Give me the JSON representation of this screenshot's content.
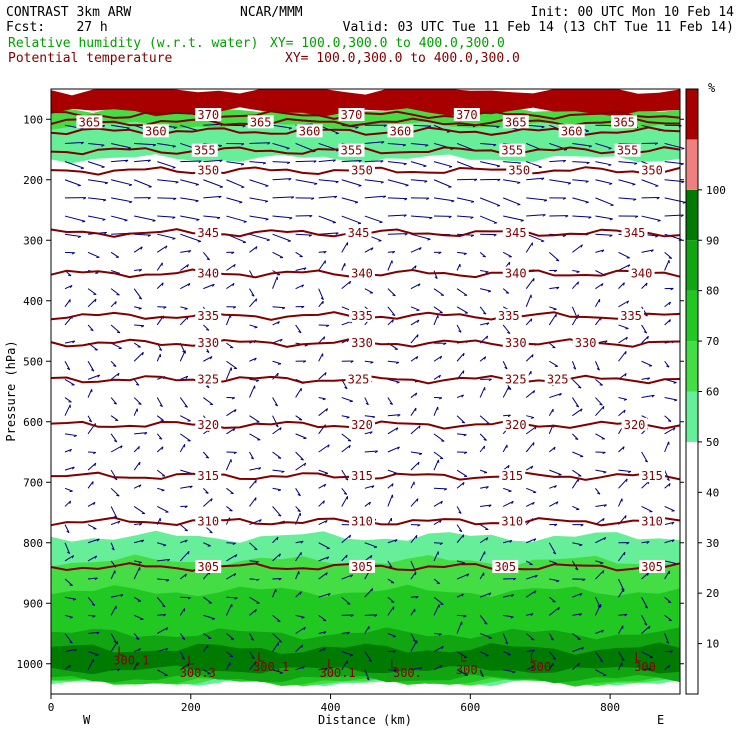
{
  "header": {
    "left1": "CONTRAST  3km ARW",
    "center1": "NCAR/MMM",
    "right1": "Init: 00 UTC Mon 10 Feb 14",
    "left2": "Fcst:    27 h",
    "right2": "Valid: 03 UTC Tue 11 Feb 14 (13 ChT Tue 11 Feb 14)",
    "rh_label": "Relative humidity (w.r.t. water)",
    "rh_xy": "XY= 100.0,300.0 to 400.0,300.0",
    "theta_label": "Potential temperature",
    "theta_xy": "XY= 100.0,300.0 to 400.0,300.0"
  },
  "colors": {
    "rh_label": "#00a000",
    "theta_label": "#800000",
    "theta_line": "#800000",
    "wind": "#00007f",
    "rh_bands": [
      "#66ee99",
      "#44dd44",
      "#22c822",
      "#11a511",
      "#007a00",
      "#f08080",
      "#a80000"
    ]
  },
  "chart_data": {
    "type": "contour",
    "xlabel": "Distance (km)",
    "ylabel": "Pressure (hPa)",
    "xlim": [
      0,
      900
    ],
    "ylim": [
      1050,
      50
    ],
    "x_ticks": [
      0,
      200,
      400,
      600,
      800
    ],
    "y_ticks": [
      100,
      200,
      300,
      400,
      500,
      600,
      700,
      800,
      900,
      1000
    ],
    "x_end_labels": {
      "left": "W",
      "right": "E"
    },
    "colorbar": {
      "unit": "%",
      "ticks": [
        10,
        20,
        30,
        40,
        50,
        60,
        70,
        80,
        90,
        100
      ],
      "levels": [
        50,
        60,
        70,
        80,
        90,
        100,
        110,
        120
      ],
      "colors": [
        "#66ee99",
        "#44dd44",
        "#22c822",
        "#11a511",
        "#007a00",
        "#f08080",
        "#a80000"
      ]
    },
    "theta_contours": [
      {
        "value": 305,
        "pressure": 840
      },
      {
        "value": 310,
        "pressure": 765
      },
      {
        "value": 315,
        "pressure": 690
      },
      {
        "value": 320,
        "pressure": 605
      },
      {
        "value": 325,
        "pressure": 530
      },
      {
        "value": 330,
        "pressure": 470
      },
      {
        "value": 335,
        "pressure": 425
      },
      {
        "value": 340,
        "pressure": 355
      },
      {
        "value": 345,
        "pressure": 288
      },
      {
        "value": 350,
        "pressure": 185
      },
      {
        "value": 355,
        "pressure": 152
      },
      {
        "value": 360,
        "pressure": 120
      },
      {
        "value": 365,
        "pressure": 105
      },
      {
        "value": 370,
        "pressure": 93
      }
    ],
    "theta_labels": [
      {
        "text": "305",
        "x": 225,
        "p": 840
      },
      {
        "text": "305",
        "x": 445,
        "p": 840
      },
      {
        "text": "305",
        "x": 650,
        "p": 840
      },
      {
        "text": "305",
        "x": 860,
        "p": 840
      },
      {
        "text": "310",
        "x": 225,
        "p": 765
      },
      {
        "text": "310",
        "x": 445,
        "p": 765
      },
      {
        "text": "310",
        "x": 660,
        "p": 765
      },
      {
        "text": "310",
        "x": 860,
        "p": 765
      },
      {
        "text": "315",
        "x": 225,
        "p": 690
      },
      {
        "text": "315",
        "x": 445,
        "p": 690
      },
      {
        "text": "315",
        "x": 660,
        "p": 690
      },
      {
        "text": "315",
        "x": 860,
        "p": 690
      },
      {
        "text": "320",
        "x": 225,
        "p": 605
      },
      {
        "text": "320",
        "x": 445,
        "p": 605
      },
      {
        "text": "320",
        "x": 665,
        "p": 605
      },
      {
        "text": "320",
        "x": 835,
        "p": 605
      },
      {
        "text": "325",
        "x": 225,
        "p": 530
      },
      {
        "text": "325",
        "x": 440,
        "p": 530
      },
      {
        "text": "325",
        "x": 665,
        "p": 530
      },
      {
        "text": "325",
        "x": 725,
        "p": 530
      },
      {
        "text": "330",
        "x": 225,
        "p": 470
      },
      {
        "text": "330",
        "x": 445,
        "p": 470
      },
      {
        "text": "330",
        "x": 665,
        "p": 470
      },
      {
        "text": "330",
        "x": 765,
        "p": 470
      },
      {
        "text": "335",
        "x": 225,
        "p": 425
      },
      {
        "text": "335",
        "x": 445,
        "p": 425
      },
      {
        "text": "335",
        "x": 655,
        "p": 425
      },
      {
        "text": "335",
        "x": 830,
        "p": 425
      },
      {
        "text": "340",
        "x": 225,
        "p": 355
      },
      {
        "text": "340",
        "x": 445,
        "p": 355
      },
      {
        "text": "340",
        "x": 665,
        "p": 355
      },
      {
        "text": "340",
        "x": 845,
        "p": 355
      },
      {
        "text": "345",
        "x": 225,
        "p": 288
      },
      {
        "text": "345",
        "x": 440,
        "p": 288
      },
      {
        "text": "345",
        "x": 665,
        "p": 288
      },
      {
        "text": "345",
        "x": 835,
        "p": 288
      },
      {
        "text": "350",
        "x": 225,
        "p": 185
      },
      {
        "text": "350",
        "x": 445,
        "p": 185
      },
      {
        "text": "350",
        "x": 670,
        "p": 185
      },
      {
        "text": "350",
        "x": 860,
        "p": 185
      },
      {
        "text": "355",
        "x": 220,
        "p": 152
      },
      {
        "text": "355",
        "x": 430,
        "p": 152
      },
      {
        "text": "355",
        "x": 660,
        "p": 152
      },
      {
        "text": "355",
        "x": 825,
        "p": 152
      },
      {
        "text": "360",
        "x": 150,
        "p": 120
      },
      {
        "text": "360",
        "x": 370,
        "p": 120
      },
      {
        "text": "360",
        "x": 500,
        "p": 120
      },
      {
        "text": "360",
        "x": 745,
        "p": 120
      },
      {
        "text": "365",
        "x": 55,
        "p": 105
      },
      {
        "text": "365",
        "x": 300,
        "p": 105
      },
      {
        "text": "365",
        "x": 665,
        "p": 105
      },
      {
        "text": "365",
        "x": 820,
        "p": 105
      },
      {
        "text": "370",
        "x": 225,
        "p": 93
      },
      {
        "text": "370",
        "x": 430,
        "p": 93
      },
      {
        "text": "370",
        "x": 595,
        "p": 93
      }
    ],
    "surface_labels": [
      {
        "text": "L",
        "x": 100,
        "p": 980
      },
      {
        "text": "L",
        "x": 200,
        "p": 995
      },
      {
        "text": "L",
        "x": 300,
        "p": 990
      },
      {
        "text": "L",
        "x": 400,
        "p": 1000
      },
      {
        "text": "L",
        "x": 490,
        "p": 1000
      },
      {
        "text": "L",
        "x": 590,
        "p": 990
      },
      {
        "text": "L",
        "x": 690,
        "p": 990
      },
      {
        "text": "L",
        "x": 840,
        "p": 990
      },
      {
        "text": "300.1",
        "x": 115,
        "p": 995
      },
      {
        "text": "300.3",
        "x": 210,
        "p": 1015
      },
      {
        "text": "300.1",
        "x": 315,
        "p": 1005
      },
      {
        "text": "300.1",
        "x": 410,
        "p": 1015
      },
      {
        "text": "300.",
        "x": 510,
        "p": 1015
      },
      {
        "text": "300.",
        "x": 600,
        "p": 1010
      },
      {
        "text": "300",
        "x": 700,
        "p": 1005
      },
      {
        "text": "300",
        "x": 850,
        "p": 1005
      }
    ],
    "rh_regions": [
      {
        "level": 50,
        "p_top": 790,
        "p_bottom": 1030
      },
      {
        "level": 60,
        "p_top": 830,
        "p_bottom": 1030
      },
      {
        "level": 70,
        "p_top": 880,
        "p_bottom": 1030
      },
      {
        "level": 80,
        "p_top": 950,
        "p_bottom": 1025
      },
      {
        "level": 90,
        "p_top": 975,
        "p_bottom": 1010
      },
      {
        "level": 50,
        "p_top": 95,
        "p_bottom": 165
      },
      {
        "level": 60,
        "p_top": 80,
        "p_bottom": 110
      },
      {
        "level": 110,
        "p_top": 50,
        "p_bottom": 88
      }
    ]
  }
}
